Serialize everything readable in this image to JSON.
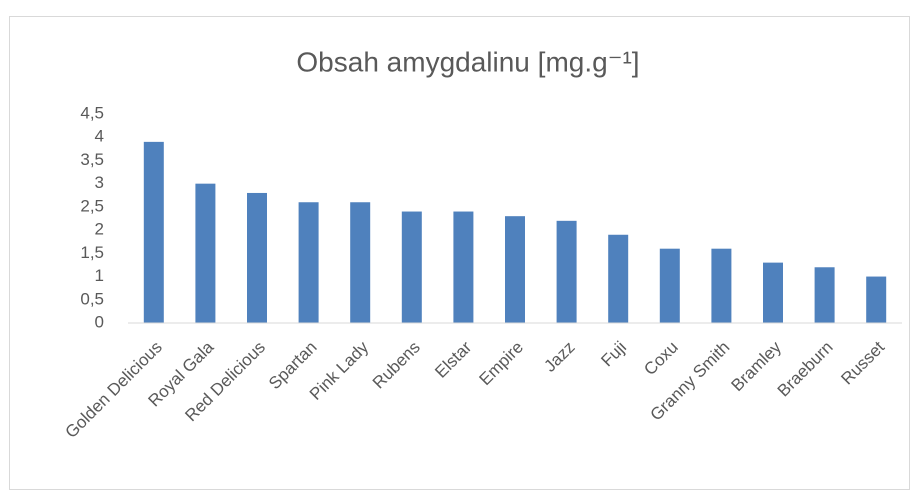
{
  "chart_data": {
    "type": "bar",
    "title": "Obsah amygdalinu [mg.g⁻¹]",
    "categories": [
      "Golden Delicious",
      "Royal Gala",
      "Red Delicious",
      "Spartan",
      "Pink Lady",
      "Rubens",
      "Elstar",
      "Empire",
      "Jazz",
      "Fuji",
      "Coxu",
      "Granny Smith",
      "Bramley",
      "Braeburn",
      "Russet"
    ],
    "values": [
      3.9,
      3.0,
      2.8,
      2.6,
      2.6,
      2.4,
      2.4,
      2.3,
      2.2,
      1.9,
      1.6,
      1.6,
      1.3,
      1.2,
      1.0
    ],
    "color": "#4f81bd",
    "ylim": [
      0,
      4.5
    ],
    "yticks": [
      0,
      {
        "value": 0.5,
        "label": "0,5"
      },
      1,
      {
        "value": 1.5,
        "label": "1,5"
      },
      2,
      {
        "value": 2.5,
        "label": "2,5"
      },
      3,
      {
        "value": 3.5,
        "label": "3,5"
      },
      4,
      {
        "value": 4.5,
        "label": "4,5"
      }
    ],
    "grid": false
  }
}
